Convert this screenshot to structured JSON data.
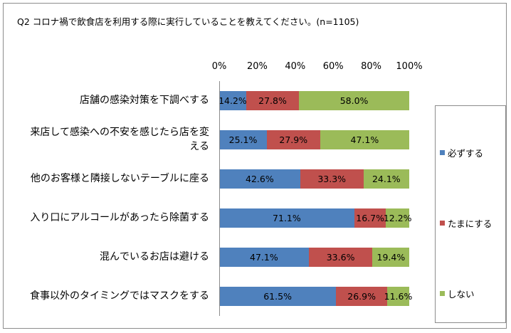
{
  "chart_data": {
    "type": "bar",
    "orientation": "horizontal",
    "stacked": true,
    "title": "Q2 コロナ禍で飲食店を利用する際に実行していることを教えてください。(n=1105)",
    "categories": [
      "店舗の感染対策を下調べする",
      "来店して感染への不安を感じたら店を変える",
      "他のお客様と隣接しないテーブルに座る",
      "入り口にアルコールがあったら除菌する",
      "混んでいるお店は避ける",
      "食事以外のタイミングではマスクをする"
    ],
    "category_lines": [
      [
        "店舗の感染対策を下調べする"
      ],
      [
        "来店して感染への不安を感じたら店を変",
        "える"
      ],
      [
        "他のお客様と隣接しないテーブルに座る"
      ],
      [
        "入り口にアルコールがあったら除菌する"
      ],
      [
        "混んでいるお店は避ける"
      ],
      [
        "食事以外のタイミングではマスクをする"
      ]
    ],
    "series": [
      {
        "name": "必ずする",
        "color": "#4f81bd",
        "values": [
          14.2,
          25.1,
          42.6,
          71.1,
          47.1,
          61.5
        ],
        "labels": [
          "14.2%",
          "25.1%",
          "42.6%",
          "71.1%",
          "47.1%",
          "61.5%"
        ]
      },
      {
        "name": "たまにする",
        "color": "#c0504d",
        "values": [
          27.8,
          27.9,
          33.3,
          16.7,
          33.6,
          26.9
        ],
        "labels": [
          "27.8%",
          "27.9%",
          "33.3%",
          "16.7%",
          "33.6%",
          "26.9%"
        ]
      },
      {
        "name": "しない",
        "color": "#9bbb59",
        "values": [
          58.0,
          47.1,
          24.1,
          12.2,
          19.4,
          11.6
        ],
        "labels": [
          "58.0%",
          "47.1%",
          "24.1%",
          "12.2%",
          "19.4%",
          "11.6%"
        ]
      }
    ],
    "xlim": [
      0,
      100
    ],
    "x_ticks": [
      "0%",
      "20%",
      "40%",
      "60%",
      "80%",
      "100%"
    ],
    "grid": false,
    "legend_position": "right"
  }
}
